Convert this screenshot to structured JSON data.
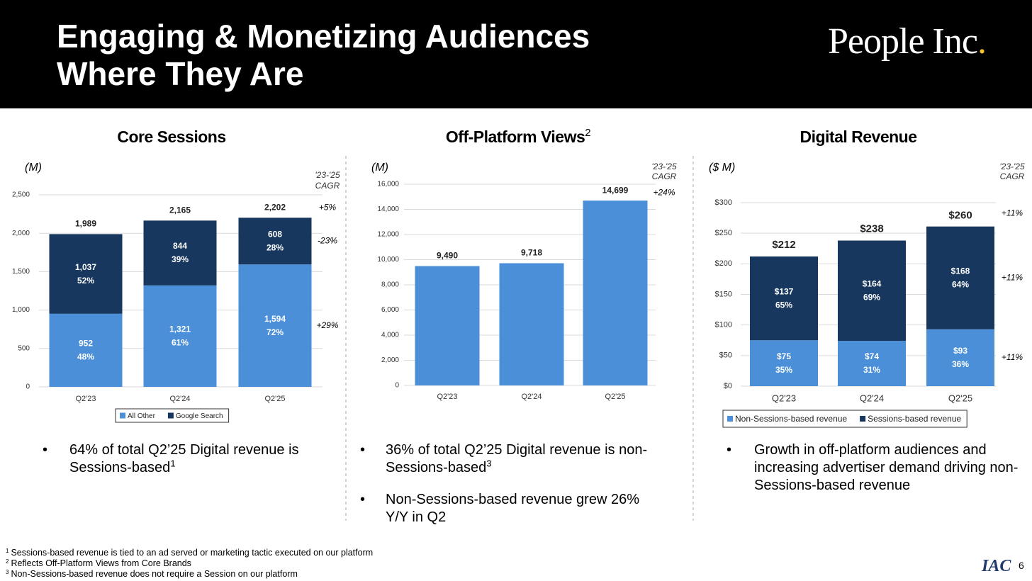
{
  "header": {
    "title": [
      "Engaging & Monetizing Audiences",
      "Where They Are"
    ],
    "logo_text": "People Inc",
    "logo_dot": "."
  },
  "chart_data": [
    {
      "type": "stacked_bar",
      "title": "Core Sessions",
      "unit": "(M)",
      "categories": [
        "Q2'23",
        "Q2'24",
        "Q2'25"
      ],
      "series": [
        {
          "name": "All Other",
          "color": "#4a8fd8",
          "values": [
            952,
            1321,
            1594
          ],
          "value_labels": [
            "952",
            "1,321",
            "1,594"
          ],
          "shares": [
            {
              "value": 48,
              "label": "48%"
            },
            {
              "value": 61,
              "label": "61%"
            },
            {
              "value": 72,
              "label": "72%"
            }
          ],
          "cagr": {
            "value": 29,
            "label": "+29%"
          }
        },
        {
          "name": "Google Search",
          "color": "#17375e",
          "values": [
            1037,
            844,
            608
          ],
          "value_labels": [
            "1,037",
            "844",
            "608"
          ],
          "shares": [
            {
              "value": 52,
              "label": "52%"
            },
            {
              "value": 39,
              "label": "39%"
            },
            {
              "value": 28,
              "label": "28%"
            }
          ],
          "cagr": {
            "value": -23,
            "label": "-23%"
          }
        }
      ],
      "totals": [
        1989,
        2165,
        2202
      ],
      "total_labels": [
        "1,989",
        "2,165",
        "2,202"
      ],
      "total_cagr": {
        "value": 5,
        "label": "+5%"
      },
      "cagr_title": [
        "'23-'25",
        "CAGR"
      ],
      "ylim": [
        0,
        2500
      ],
      "yticks": [
        0,
        500,
        {
          "value": 1000,
          "label": "1,000"
        },
        {
          "value": 1500,
          "label": "1,500"
        },
        {
          "value": 2000,
          "label": "2,000"
        },
        {
          "value": 2500,
          "label": "2,500"
        }
      ],
      "grid": true,
      "legend": "bottom"
    },
    {
      "type": "bar",
      "title": "Off-Platform Views",
      "title_sup": "2",
      "unit": "(M)",
      "categories": [
        "Q2'23",
        "Q2'24",
        "Q2'25"
      ],
      "color": "#4a8fd8",
      "values": [
        9490,
        9718,
        14699
      ],
      "value_labels": [
        "9,490",
        "9,718",
        "14,699"
      ],
      "cagr": {
        "value": 24,
        "label": "+24%"
      },
      "cagr_title": [
        "'23-'25",
        "CAGR"
      ],
      "ylim": [
        0,
        16000
      ],
      "yticks": [
        0,
        {
          "value": 2000,
          "label": "2,000"
        },
        {
          "value": 4000,
          "label": "4,000"
        },
        {
          "value": 6000,
          "label": "6,000"
        },
        {
          "value": 8000,
          "label": "8,000"
        },
        {
          "value": 10000,
          "label": "10,000"
        },
        {
          "value": 12000,
          "label": "12,000"
        },
        {
          "value": 14000,
          "label": "14,000"
        },
        {
          "value": 16000,
          "label": "16,000"
        }
      ],
      "grid": true
    },
    {
      "type": "stacked_bar",
      "title": "Digital Revenue",
      "unit": "($ M)",
      "categories": [
        "Q2'23",
        "Q2'24",
        "Q2'25"
      ],
      "series": [
        {
          "name": "Non-Sessions-based revenue",
          "color": "#4a8fd8",
          "values": [
            75,
            74,
            93
          ],
          "value_labels": [
            "$75",
            "$74",
            "$93"
          ],
          "shares": [
            {
              "value": 35,
              "label": "35%"
            },
            {
              "value": 31,
              "label": "31%"
            },
            {
              "value": 36,
              "label": "36%"
            }
          ],
          "cagr": {
            "value": 11,
            "label": "+11%"
          }
        },
        {
          "name": "Sessions-based revenue",
          "color": "#17375e",
          "values": [
            137,
            164,
            168
          ],
          "value_labels": [
            "$137",
            "$164",
            "$168"
          ],
          "shares": [
            {
              "value": 65,
              "label": "65%"
            },
            {
              "value": 69,
              "label": "69%"
            },
            {
              "value": 64,
              "label": "64%"
            }
          ],
          "cagr": {
            "value": 11,
            "label": "+11%"
          }
        }
      ],
      "totals": [
        212,
        238,
        260
      ],
      "total_labels": [
        "$212",
        "$238",
        "$260"
      ],
      "total_cagr": {
        "value": 11,
        "label": "+11%"
      },
      "cagr_title": [
        "'23-'25",
        "CAGR"
      ],
      "ylim": [
        0,
        300
      ],
      "yticks": [
        {
          "value": 0,
          "label": "$0"
        },
        {
          "value": 50,
          "label": "$50"
        },
        {
          "value": 100,
          "label": "$100"
        },
        {
          "value": 150,
          "label": "$150"
        },
        {
          "value": 200,
          "label": "$200"
        },
        {
          "value": 250,
          "label": "$250"
        },
        {
          "value": 300,
          "label": "$300"
        }
      ],
      "grid": true,
      "legend": "bottom"
    }
  ],
  "bullets": [
    [
      {
        "text": "64% of total Q2’25 Digital revenue is Sessions-based",
        "sup": "1"
      }
    ],
    [
      {
        "text": "36% of total Q2’25 Digital revenue is non-Sessions-based",
        "sup": "3"
      },
      {
        "text": "Non-Sessions-based revenue grew 26% Y/Y in Q2"
      }
    ],
    [
      {
        "text": "Growth in off-platform audiences and increasing advertiser demand driving non-Sessions-based revenue"
      }
    ]
  ],
  "footnotes": [
    {
      "mark": "1",
      "text": "Sessions-based revenue is tied to an ad served or marketing tactic executed on our platform"
    },
    {
      "mark": "2",
      "text": "Reflects Off-Platform Views from Core Brands"
    },
    {
      "mark": "3",
      "text": "Non-Sessions-based revenue does not require a Session on our platform"
    }
  ],
  "footer": {
    "logo": "IAC",
    "page": "6"
  }
}
